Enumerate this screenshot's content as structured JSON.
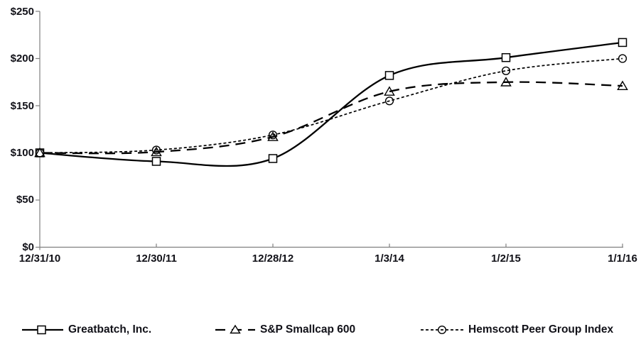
{
  "figure": {
    "background_color": "#ffffff",
    "axis_color": "#808080",
    "series_color": "#000000",
    "text_color": "#111118"
  },
  "chart_data": {
    "type": "line",
    "title": "",
    "xlabel": "",
    "ylabel": "",
    "grid": false,
    "legend_position": "bottom",
    "ylim": [
      0,
      250
    ],
    "y_ticks": [
      "$250",
      "$200",
      "$150",
      "$100",
      "$50",
      "$0"
    ],
    "y_tick_values": [
      250,
      200,
      150,
      100,
      50,
      0
    ],
    "x_categories": [
      "12/31/10",
      "12/30/11",
      "12/28/12",
      "1/3/14",
      "1/2/15",
      "1/1/16"
    ],
    "series": [
      {
        "name": "Greatbatch, Inc.",
        "marker": "square",
        "line_style": "solid",
        "color": "#000000",
        "values": [
          100,
          91,
          94,
          182,
          201,
          217
        ]
      },
      {
        "name": "S&P Smallcap 600",
        "marker": "triangle",
        "line_style": "long-dash",
        "color": "#000000",
        "values": [
          100,
          101,
          117,
          165,
          175,
          171
        ]
      },
      {
        "name": "Hemscott Peer Group Index",
        "marker": "circle",
        "line_style": "short-dash",
        "color": "#000000",
        "values": [
          100,
          103,
          119,
          155,
          187,
          200
        ]
      }
    ]
  }
}
